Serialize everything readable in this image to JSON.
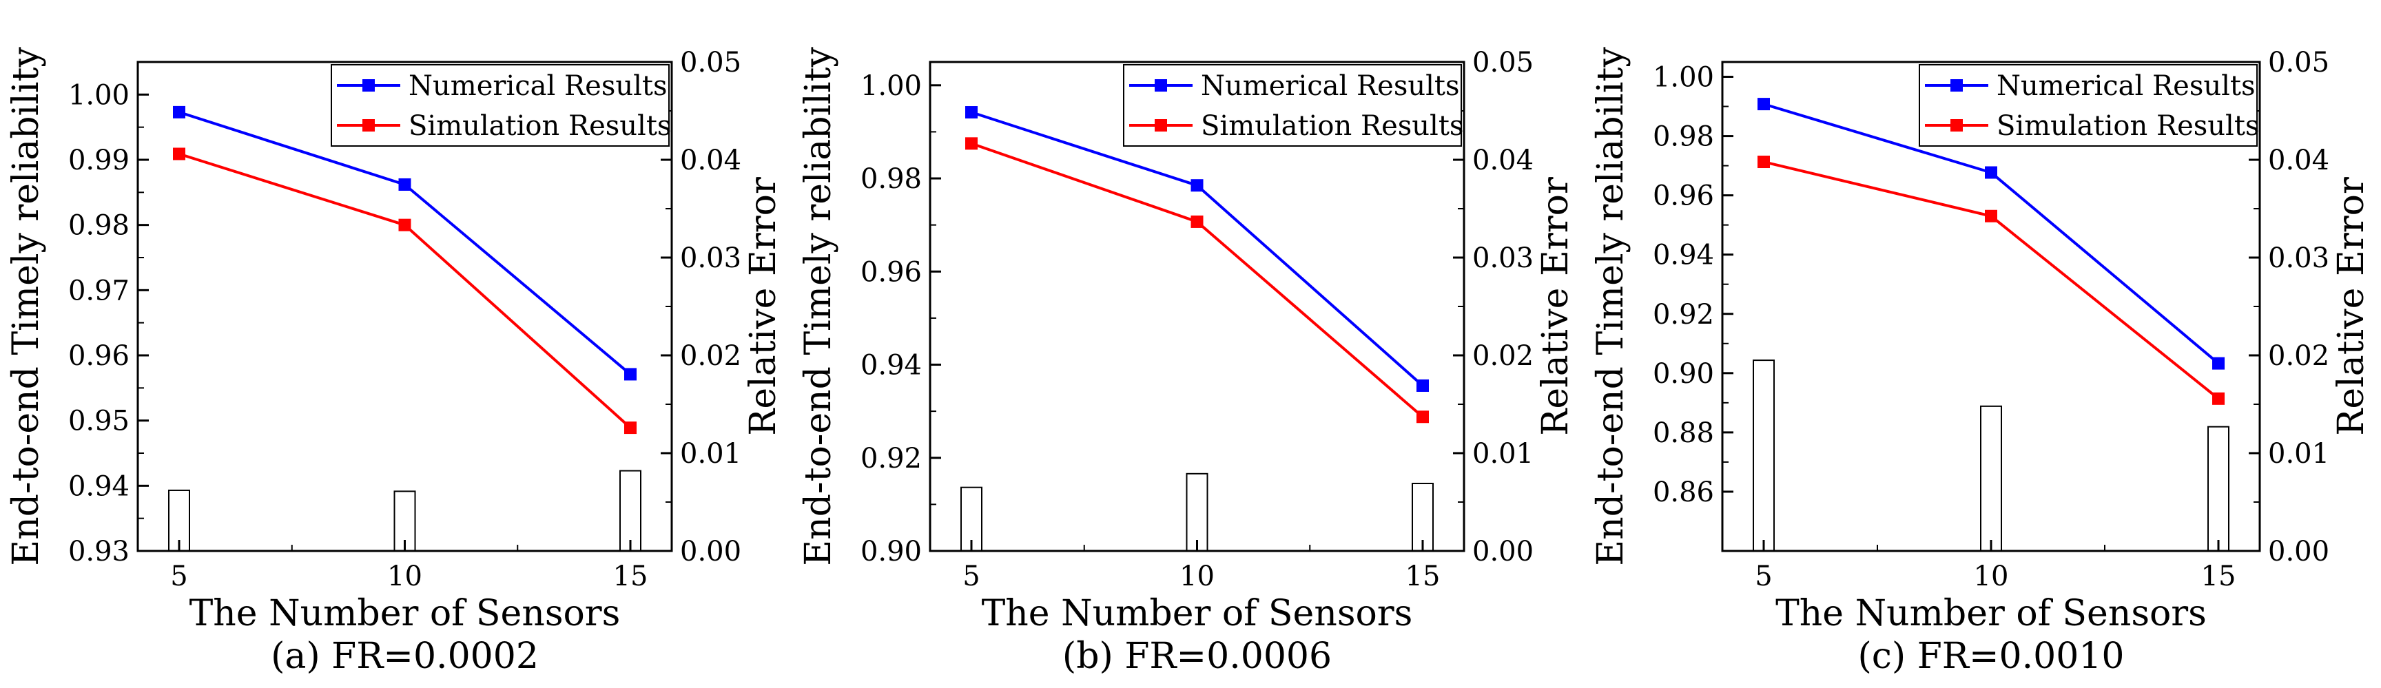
{
  "chart_data": [
    {
      "type": "line+bar",
      "caption": "(a) FR=0.0002",
      "xlabel": "The Number of Sensors",
      "ylabel": "End-to-end Timely reliability",
      "y2label": "Relative Error",
      "x": [
        5,
        10,
        15
      ],
      "xticks": [
        "5",
        "10",
        "15"
      ],
      "ylim": [
        0.93,
        1.005
      ],
      "yticks": [
        0.93,
        0.94,
        0.95,
        0.96,
        0.97,
        0.98,
        0.99,
        1.0
      ],
      "yticklabels": [
        "0.93",
        "0.94",
        "0.95",
        "0.96",
        "0.97",
        "0.98",
        "0.99",
        "1.00"
      ],
      "y2lim": [
        0,
        0.05
      ],
      "y2ticks": [
        0,
        0.01,
        0.02,
        0.03,
        0.04,
        0.05
      ],
      "y2ticklabels": [
        "0.00",
        "0.01",
        "0.02",
        "0.03",
        "0.04",
        "0.05"
      ],
      "series": [
        {
          "name": "Numerical Results",
          "color": "#0000ff",
          "values": [
            0.9973,
            0.9862,
            0.9571
          ]
        },
        {
          "name": "Simulation Results",
          "color": "#ff0000",
          "values": [
            0.9909,
            0.98,
            0.9489
          ]
        }
      ],
      "bars": {
        "name": "Relative Error",
        "values": [
          0.0062,
          0.0061,
          0.0082
        ]
      },
      "legend": "top-right"
    },
    {
      "type": "line+bar",
      "caption": "(b) FR=0.0006",
      "xlabel": "The Number of Sensors",
      "ylabel": "End-to-end Timely reliability",
      "y2label": "Relative Error",
      "x": [
        5,
        10,
        15
      ],
      "xticks": [
        "5",
        "10",
        "15"
      ],
      "ylim": [
        0.9,
        1.005
      ],
      "yticks": [
        0.9,
        0.92,
        0.94,
        0.96,
        0.98,
        1.0
      ],
      "yticklabels": [
        "0.90",
        "0.92",
        "0.94",
        "0.96",
        "0.98",
        "1.00"
      ],
      "y2lim": [
        0,
        0.05
      ],
      "y2ticks": [
        0,
        0.01,
        0.02,
        0.03,
        0.04,
        0.05
      ],
      "y2ticklabels": [
        "0.00",
        "0.01",
        "0.02",
        "0.03",
        "0.04",
        "0.05"
      ],
      "series": [
        {
          "name": "Numerical Results",
          "color": "#0000ff",
          "values": [
            0.9942,
            0.9785,
            0.9355
          ]
        },
        {
          "name": "Simulation Results",
          "color": "#ff0000",
          "values": [
            0.9875,
            0.9707,
            0.9288
          ]
        }
      ],
      "bars": {
        "name": "Relative Error",
        "values": [
          0.0065,
          0.0079,
          0.0069
        ]
      },
      "legend": "top-right"
    },
    {
      "type": "line+bar",
      "caption": "(c) FR=0.0010",
      "xlabel": "The Number of Sensors",
      "ylabel": "End-to-end Timely reliability",
      "y2label": "Relative Error",
      "x": [
        5,
        10,
        15
      ],
      "xticks": [
        "5",
        "10",
        "15"
      ],
      "ylim": [
        0.84,
        1.005
      ],
      "yticks": [
        0.86,
        0.88,
        0.9,
        0.92,
        0.94,
        0.96,
        0.98,
        1.0
      ],
      "yticklabels": [
        "0.86",
        "0.88",
        "0.90",
        "0.92",
        "0.94",
        "0.96",
        "0.98",
        "1.00"
      ],
      "y2lim": [
        0,
        0.05
      ],
      "y2ticks": [
        0,
        0.01,
        0.02,
        0.03,
        0.04,
        0.05
      ],
      "y2ticklabels": [
        "0.00",
        "0.01",
        "0.02",
        "0.03",
        "0.04",
        "0.05"
      ],
      "series": [
        {
          "name": "Numerical Results",
          "color": "#0000ff",
          "values": [
            0.9908,
            0.9677,
            0.9033
          ]
        },
        {
          "name": "Simulation Results",
          "color": "#ff0000",
          "values": [
            0.9713,
            0.953,
            0.8914
          ]
        }
      ],
      "bars": {
        "name": "Relative Error",
        "values": [
          0.0195,
          0.0148,
          0.0127
        ]
      },
      "legend": "top-right"
    }
  ]
}
